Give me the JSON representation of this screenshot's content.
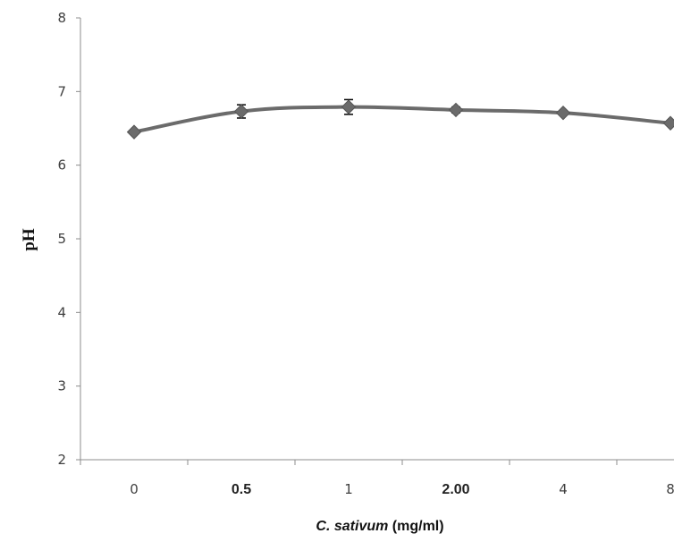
{
  "chart_data": {
    "type": "line",
    "categories": [
      "0",
      "0.5",
      "1",
      "2.00",
      "4",
      "8"
    ],
    "bold_categories": [
      false,
      true,
      false,
      true,
      false,
      false
    ],
    "values": [
      6.45,
      6.73,
      6.79,
      6.75,
      6.71,
      6.57
    ],
    "error": [
      0.0,
      0.09,
      0.1,
      0.04,
      0.02,
      0.02
    ],
    "ylabel": "pH",
    "xlabel_italic": "C. sativum",
    "xlabel_rest": " (mg/ml)",
    "ylim": [
      2,
      8
    ],
    "yticks": [
      2,
      3,
      4,
      5,
      6,
      7,
      8
    ],
    "grid": false,
    "legend": "none",
    "line_color": "#6b6b6b",
    "marker_color": "#6b6b6b",
    "marker": "diamond"
  }
}
